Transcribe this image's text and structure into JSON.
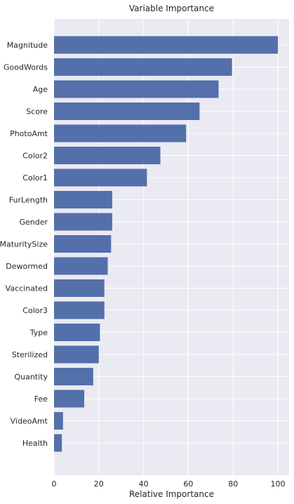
{
  "chart_data": {
    "type": "bar",
    "orientation": "horizontal",
    "title": "Variable Importance",
    "xlabel": "Relative Importance",
    "ylabel": "",
    "xlim": [
      0,
      105
    ],
    "x_ticks": [
      0,
      20,
      40,
      60,
      80,
      100
    ],
    "grid": true,
    "categories": [
      "Magnitude",
      "GoodWords",
      "Age",
      "Score",
      "PhotoAmt",
      "Color2",
      "Color1",
      "FurLength",
      "Gender",
      "MaturitySize",
      "Dewormed",
      "Vaccinated",
      "Color3",
      "Type",
      "Sterilized",
      "Quantity",
      "Fee",
      "VideoAmt",
      "Health"
    ],
    "values": [
      100,
      79.5,
      73.5,
      65,
      59,
      47.5,
      41.5,
      26,
      26,
      25.5,
      24,
      22.5,
      22.5,
      20.5,
      20,
      17.5,
      13.5,
      4,
      3.5
    ],
    "colors": {
      "bar": "#5470ab",
      "plot_background": "#eaeaf2",
      "grid": "#ffffff",
      "text": "#262626"
    }
  }
}
